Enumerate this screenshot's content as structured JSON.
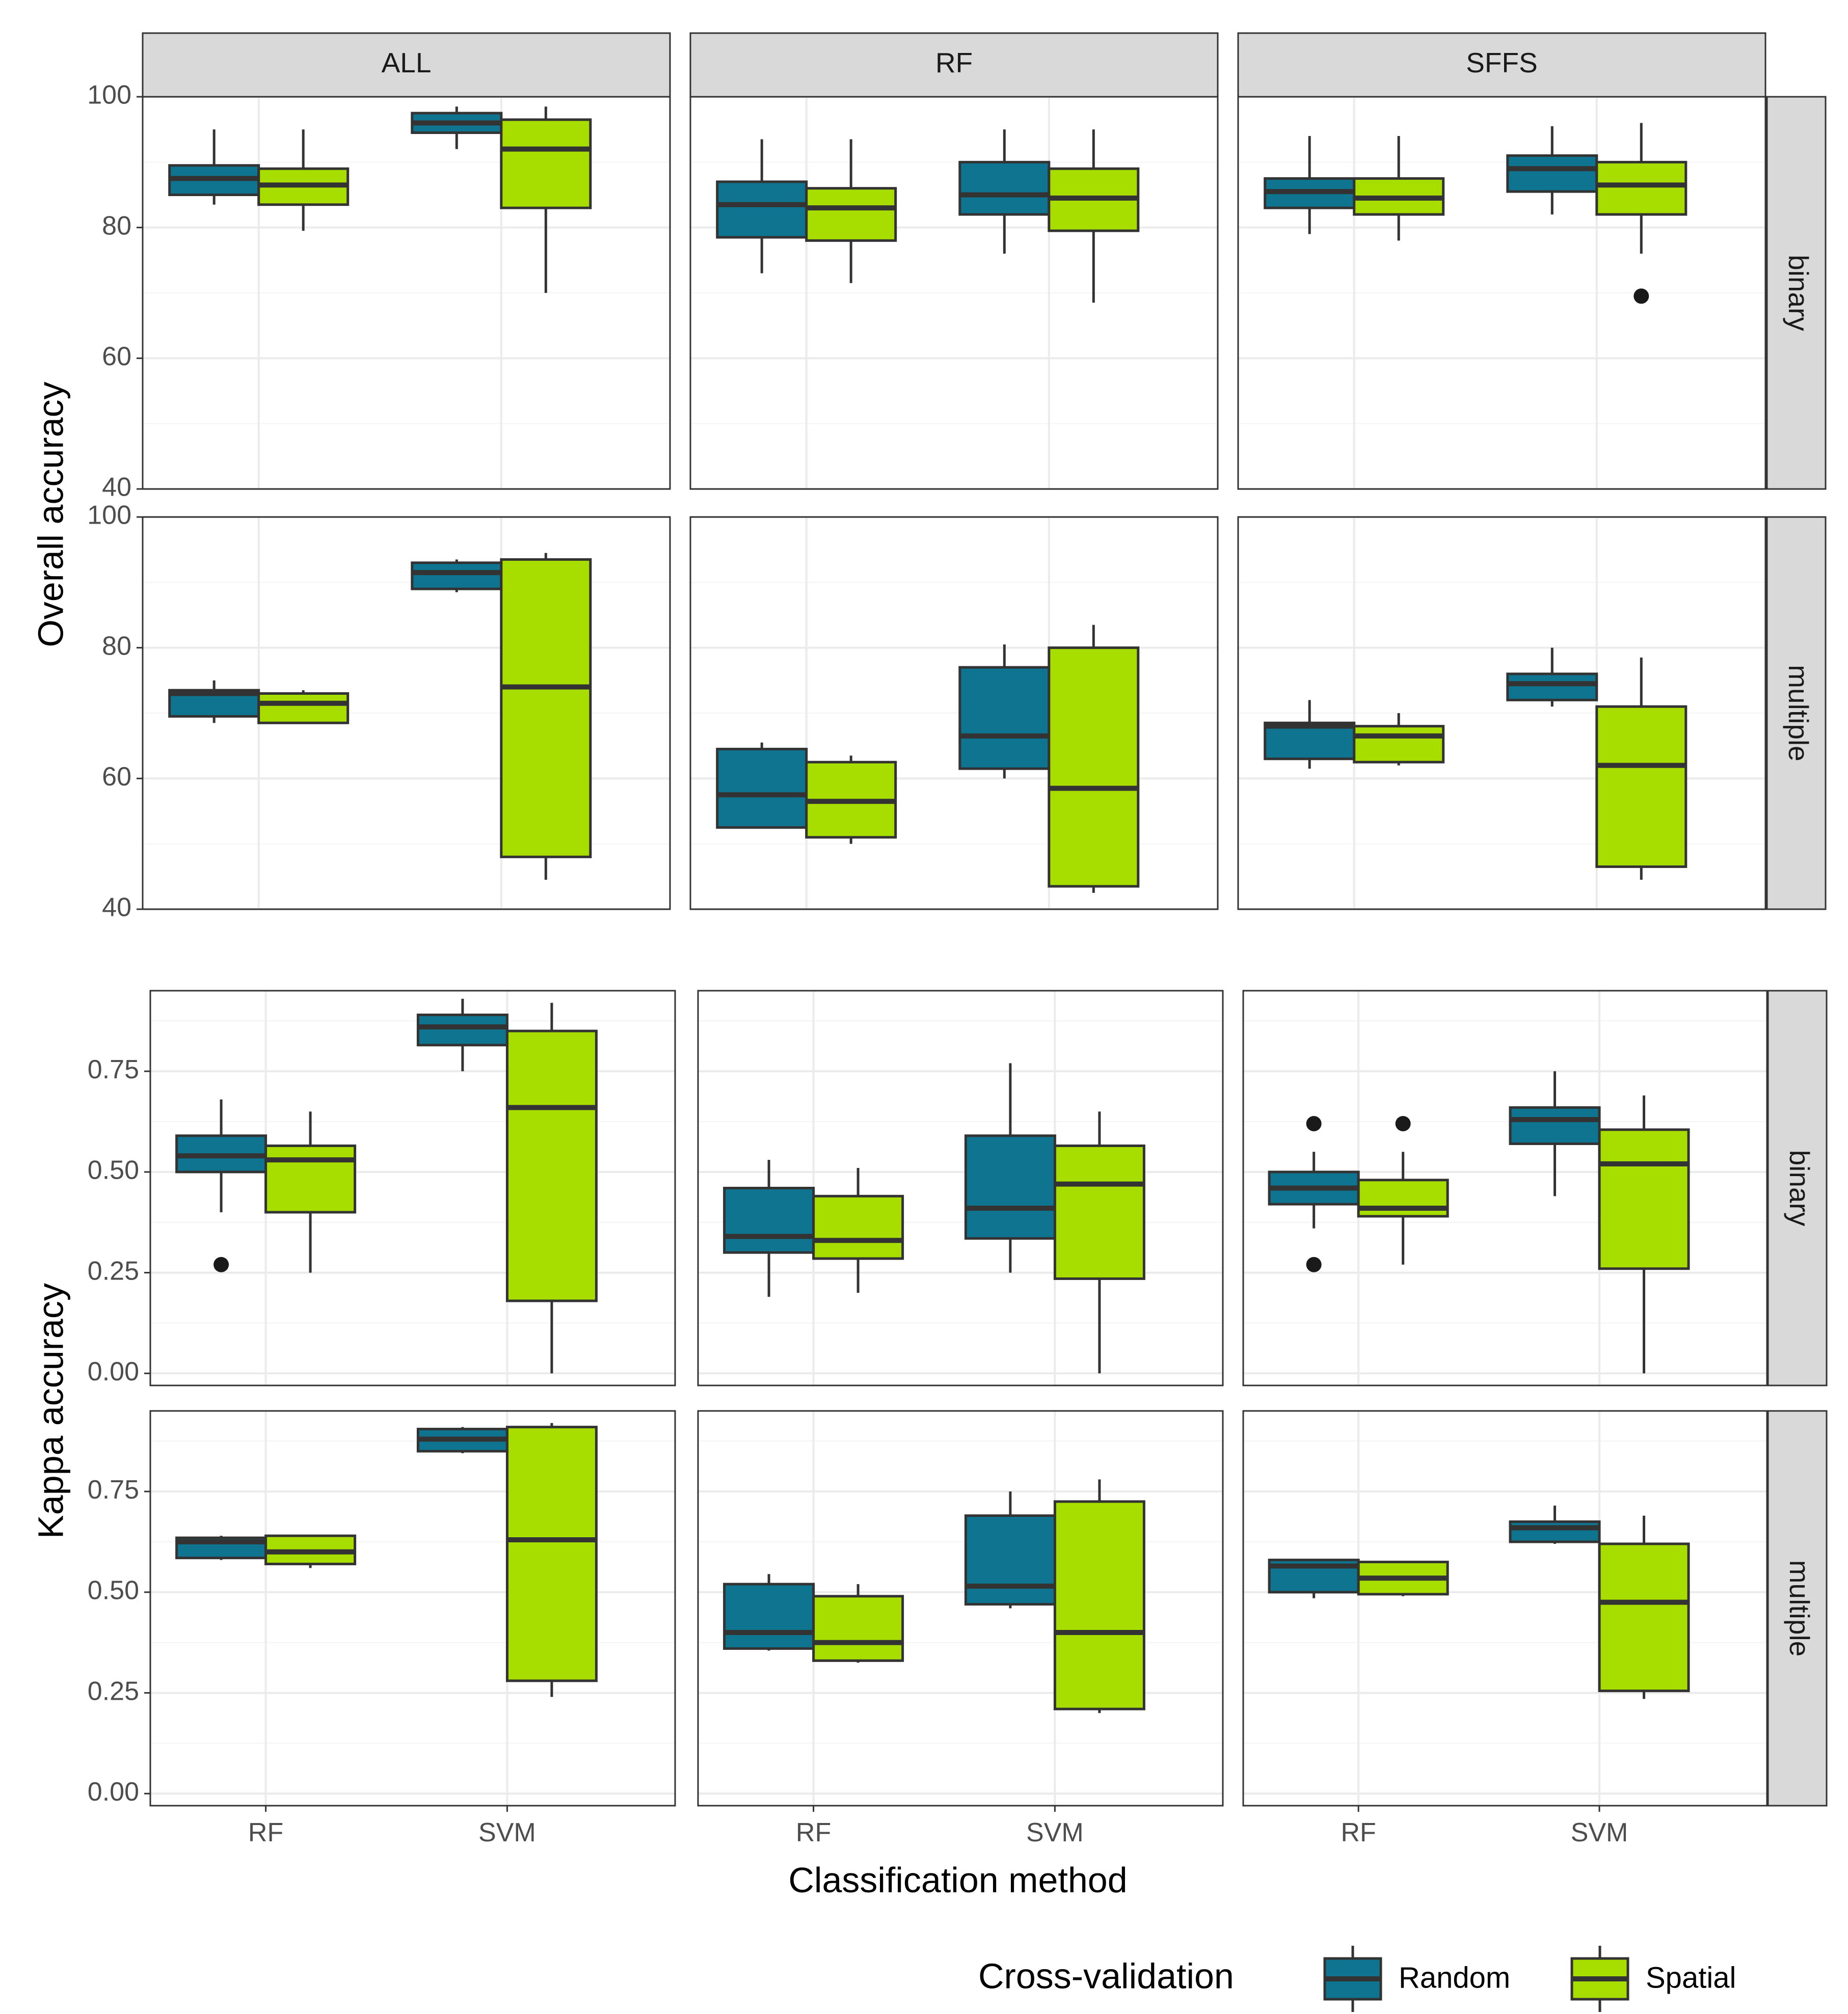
{
  "chart_data": {
    "type": "boxplot",
    "layout": "faceted grid",
    "xlabel": "Classification method",
    "categories": [
      "RF",
      "SVM"
    ],
    "column_facets": [
      "ALL",
      "RF",
      "SFFS"
    ],
    "row_facets": [
      "binary",
      "multiple"
    ],
    "legend": {
      "title": "Cross-validation",
      "position": "bottom-right",
      "entries": [
        {
          "name": "Random",
          "color": "#0e7490"
        },
        {
          "name": "Spatial",
          "color": "#a8dd00"
        }
      ]
    },
    "colors": {
      "Random": "#0e7490",
      "Spatial": "#a8dd00",
      "strip": "#d9d9d9",
      "outline": "#333333"
    },
    "groups": [
      {
        "ylabel": "Overall accuracy",
        "ylim": [
          40,
          100
        ],
        "major_ticks": [
          40,
          60,
          80,
          100
        ],
        "tick_labels": [
          "40",
          "60",
          "80",
          "100"
        ],
        "rows": [
          {
            "label": "binary",
            "panels": [
              {
                "column": "ALL",
                "boxes": [
                  {
                    "method": "RF",
                    "cv": "Random",
                    "min": 83.5,
                    "q1": 85.0,
                    "median": 87.5,
                    "q3": 89.5,
                    "max": 95.0,
                    "outliers": []
                  },
                  {
                    "method": "RF",
                    "cv": "Spatial",
                    "min": 79.5,
                    "q1": 83.5,
                    "median": 86.5,
                    "q3": 89.0,
                    "max": 95.0,
                    "outliers": []
                  },
                  {
                    "method": "SVM",
                    "cv": "Random",
                    "min": 92.0,
                    "q1": 94.5,
                    "median": 96.0,
                    "q3": 97.5,
                    "max": 98.5,
                    "outliers": []
                  },
                  {
                    "method": "SVM",
                    "cv": "Spatial",
                    "min": 70.0,
                    "q1": 83.0,
                    "median": 92.0,
                    "q3": 96.5,
                    "max": 98.5,
                    "outliers": []
                  }
                ]
              },
              {
                "column": "RF",
                "boxes": [
                  {
                    "method": "RF",
                    "cv": "Random",
                    "min": 73.0,
                    "q1": 78.5,
                    "median": 83.5,
                    "q3": 87.0,
                    "max": 93.5,
                    "outliers": []
                  },
                  {
                    "method": "RF",
                    "cv": "Spatial",
                    "min": 71.5,
                    "q1": 78.0,
                    "median": 83.0,
                    "q3": 86.0,
                    "max": 93.5,
                    "outliers": []
                  },
                  {
                    "method": "SVM",
                    "cv": "Random",
                    "min": 76.0,
                    "q1": 82.0,
                    "median": 85.0,
                    "q3": 90.0,
                    "max": 95.0,
                    "outliers": []
                  },
                  {
                    "method": "SVM",
                    "cv": "Spatial",
                    "min": 68.5,
                    "q1": 79.5,
                    "median": 84.5,
                    "q3": 89.0,
                    "max": 95.0,
                    "outliers": []
                  }
                ]
              },
              {
                "column": "SFFS",
                "boxes": [
                  {
                    "method": "RF",
                    "cv": "Random",
                    "min": 79.0,
                    "q1": 83.0,
                    "median": 85.5,
                    "q3": 87.5,
                    "max": 94.0,
                    "outliers": []
                  },
                  {
                    "method": "RF",
                    "cv": "Spatial",
                    "min": 78.0,
                    "q1": 82.0,
                    "median": 84.5,
                    "q3": 87.5,
                    "max": 94.0,
                    "outliers": []
                  },
                  {
                    "method": "SVM",
                    "cv": "Random",
                    "min": 82.0,
                    "q1": 85.5,
                    "median": 89.0,
                    "q3": 91.0,
                    "max": 95.5,
                    "outliers": []
                  },
                  {
                    "method": "SVM",
                    "cv": "Spatial",
                    "min": 76.0,
                    "q1": 82.0,
                    "median": 86.5,
                    "q3": 90.0,
                    "max": 96.0,
                    "outliers": [
                      69.5
                    ]
                  }
                ]
              }
            ]
          },
          {
            "label": "multiple",
            "panels": [
              {
                "column": "ALL",
                "boxes": [
                  {
                    "method": "RF",
                    "cv": "Random",
                    "min": 68.5,
                    "q1": 69.5,
                    "median": 73.0,
                    "q3": 73.5,
                    "max": 75.0,
                    "outliers": []
                  },
                  {
                    "method": "RF",
                    "cv": "Spatial",
                    "min": 68.5,
                    "q1": 68.5,
                    "median": 71.5,
                    "q3": 73.0,
                    "max": 73.5,
                    "outliers": []
                  },
                  {
                    "method": "SVM",
                    "cv": "Random",
                    "min": 88.5,
                    "q1": 89.0,
                    "median": 91.5,
                    "q3": 93.0,
                    "max": 93.5,
                    "outliers": []
                  },
                  {
                    "method": "SVM",
                    "cv": "Spatial",
                    "min": 44.5,
                    "q1": 48.0,
                    "median": 74.0,
                    "q3": 93.5,
                    "max": 94.5,
                    "outliers": []
                  }
                ]
              },
              {
                "column": "RF",
                "boxes": [
                  {
                    "method": "RF",
                    "cv": "Random",
                    "min": 52.5,
                    "q1": 52.5,
                    "median": 57.5,
                    "q3": 64.5,
                    "max": 65.5,
                    "outliers": []
                  },
                  {
                    "method": "RF",
                    "cv": "Spatial",
                    "min": 50.0,
                    "q1": 51.0,
                    "median": 56.5,
                    "q3": 62.5,
                    "max": 63.5,
                    "outliers": []
                  },
                  {
                    "method": "SVM",
                    "cv": "Random",
                    "min": 60.0,
                    "q1": 61.5,
                    "median": 66.5,
                    "q3": 77.0,
                    "max": 80.5,
                    "outliers": []
                  },
                  {
                    "method": "SVM",
                    "cv": "Spatial",
                    "min": 42.5,
                    "q1": 43.5,
                    "median": 58.5,
                    "q3": 80.0,
                    "max": 83.5,
                    "outliers": []
                  }
                ]
              },
              {
                "column": "SFFS",
                "boxes": [
                  {
                    "method": "RF",
                    "cv": "Random",
                    "min": 61.5,
                    "q1": 63.0,
                    "median": 68.0,
                    "q3": 68.5,
                    "max": 72.0,
                    "outliers": []
                  },
                  {
                    "method": "RF",
                    "cv": "Spatial",
                    "min": 62.0,
                    "q1": 62.5,
                    "median": 66.5,
                    "q3": 68.0,
                    "max": 70.0,
                    "outliers": []
                  },
                  {
                    "method": "SVM",
                    "cv": "Random",
                    "min": 71.0,
                    "q1": 72.0,
                    "median": 74.5,
                    "q3": 76.0,
                    "max": 80.0,
                    "outliers": []
                  },
                  {
                    "method": "SVM",
                    "cv": "Spatial",
                    "min": 44.5,
                    "q1": 46.5,
                    "median": 62.0,
                    "q3": 71.0,
                    "max": 78.5,
                    "outliers": []
                  }
                ]
              }
            ]
          }
        ]
      },
      {
        "ylabel": "Kappa accuracy",
        "ylim": [
          -0.03,
          0.95
        ],
        "major_ticks": [
          0,
          0.25,
          0.5,
          0.75
        ],
        "tick_labels": [
          "0.00",
          "0.25",
          "0.50",
          "0.75"
        ],
        "rows": [
          {
            "label": "binary",
            "panels": [
              {
                "column": "ALL",
                "boxes": [
                  {
                    "method": "RF",
                    "cv": "Random",
                    "min": 0.4,
                    "q1": 0.5,
                    "median": 0.54,
                    "q3": 0.59,
                    "max": 0.68,
                    "outliers": [
                      0.27
                    ]
                  },
                  {
                    "method": "RF",
                    "cv": "Spatial",
                    "min": 0.25,
                    "q1": 0.4,
                    "median": 0.53,
                    "q3": 0.565,
                    "max": 0.65,
                    "outliers": []
                  },
                  {
                    "method": "SVM",
                    "cv": "Random",
                    "min": 0.75,
                    "q1": 0.815,
                    "median": 0.86,
                    "q3": 0.89,
                    "max": 0.93,
                    "outliers": []
                  },
                  {
                    "method": "SVM",
                    "cv": "Spatial",
                    "min": 0.0,
                    "q1": 0.18,
                    "median": 0.66,
                    "q3": 0.85,
                    "max": 0.92,
                    "outliers": []
                  }
                ]
              },
              {
                "column": "RF",
                "boxes": [
                  {
                    "method": "RF",
                    "cv": "Random",
                    "min": 0.19,
                    "q1": 0.3,
                    "median": 0.34,
                    "q3": 0.46,
                    "max": 0.53,
                    "outliers": []
                  },
                  {
                    "method": "RF",
                    "cv": "Spatial",
                    "min": 0.2,
                    "q1": 0.285,
                    "median": 0.33,
                    "q3": 0.44,
                    "max": 0.51,
                    "outliers": []
                  },
                  {
                    "method": "SVM",
                    "cv": "Random",
                    "min": 0.25,
                    "q1": 0.335,
                    "median": 0.41,
                    "q3": 0.59,
                    "max": 0.77,
                    "outliers": []
                  },
                  {
                    "method": "SVM",
                    "cv": "Spatial",
                    "min": 0.0,
                    "q1": 0.235,
                    "median": 0.47,
                    "q3": 0.565,
                    "max": 0.65,
                    "outliers": []
                  }
                ]
              },
              {
                "column": "SFFS",
                "boxes": [
                  {
                    "method": "RF",
                    "cv": "Random",
                    "min": 0.36,
                    "q1": 0.42,
                    "median": 0.46,
                    "q3": 0.5,
                    "max": 0.55,
                    "outliers": [
                      0.62,
                      0.27
                    ]
                  },
                  {
                    "method": "RF",
                    "cv": "Spatial",
                    "min": 0.27,
                    "q1": 0.39,
                    "median": 0.41,
                    "q3": 0.48,
                    "max": 0.55,
                    "outliers": [
                      0.62
                    ]
                  },
                  {
                    "method": "SVM",
                    "cv": "Random",
                    "min": 0.44,
                    "q1": 0.57,
                    "median": 0.63,
                    "q3": 0.66,
                    "max": 0.75,
                    "outliers": []
                  },
                  {
                    "method": "SVM",
                    "cv": "Spatial",
                    "min": 0.0,
                    "q1": 0.26,
                    "median": 0.52,
                    "q3": 0.605,
                    "max": 0.69,
                    "outliers": []
                  }
                ]
              }
            ]
          },
          {
            "label": "multiple",
            "panels": [
              {
                "column": "ALL",
                "boxes": [
                  {
                    "method": "RF",
                    "cv": "Random",
                    "min": 0.58,
                    "q1": 0.585,
                    "median": 0.625,
                    "q3": 0.635,
                    "max": 0.64,
                    "outliers": []
                  },
                  {
                    "method": "RF",
                    "cv": "Spatial",
                    "min": 0.56,
                    "q1": 0.57,
                    "median": 0.6,
                    "q3": 0.64,
                    "max": 0.64,
                    "outliers": []
                  },
                  {
                    "method": "SVM",
                    "cv": "Random",
                    "min": 0.845,
                    "q1": 0.85,
                    "median": 0.88,
                    "q3": 0.905,
                    "max": 0.91,
                    "outliers": []
                  },
                  {
                    "method": "SVM",
                    "cv": "Spatial",
                    "min": 0.24,
                    "q1": 0.28,
                    "median": 0.63,
                    "q3": 0.91,
                    "max": 0.92,
                    "outliers": []
                  }
                ]
              },
              {
                "column": "RF",
                "boxes": [
                  {
                    "method": "RF",
                    "cv": "Random",
                    "min": 0.355,
                    "q1": 0.36,
                    "median": 0.4,
                    "q3": 0.52,
                    "max": 0.545,
                    "outliers": []
                  },
                  {
                    "method": "RF",
                    "cv": "Spatial",
                    "min": 0.325,
                    "q1": 0.33,
                    "median": 0.375,
                    "q3": 0.49,
                    "max": 0.52,
                    "outliers": []
                  },
                  {
                    "method": "SVM",
                    "cv": "Random",
                    "min": 0.46,
                    "q1": 0.47,
                    "median": 0.515,
                    "q3": 0.69,
                    "max": 0.75,
                    "outliers": []
                  },
                  {
                    "method": "SVM",
                    "cv": "Spatial",
                    "min": 0.2,
                    "q1": 0.21,
                    "median": 0.4,
                    "q3": 0.725,
                    "max": 0.78,
                    "outliers": []
                  }
                ]
              },
              {
                "column": "SFFS",
                "boxes": [
                  {
                    "method": "RF",
                    "cv": "Random",
                    "min": 0.485,
                    "q1": 0.5,
                    "median": 0.565,
                    "q3": 0.58,
                    "max": 0.58,
                    "outliers": []
                  },
                  {
                    "method": "RF",
                    "cv": "Spatial",
                    "min": 0.49,
                    "q1": 0.495,
                    "median": 0.535,
                    "q3": 0.575,
                    "max": 0.575,
                    "outliers": []
                  },
                  {
                    "method": "SVM",
                    "cv": "Random",
                    "min": 0.62,
                    "q1": 0.625,
                    "median": 0.66,
                    "q3": 0.675,
                    "max": 0.715,
                    "outliers": []
                  },
                  {
                    "method": "SVM",
                    "cv": "Spatial",
                    "min": 0.235,
                    "q1": 0.255,
                    "median": 0.475,
                    "q3": 0.62,
                    "max": 0.69,
                    "outliers": []
                  }
                ]
              }
            ]
          }
        ]
      }
    ]
  }
}
